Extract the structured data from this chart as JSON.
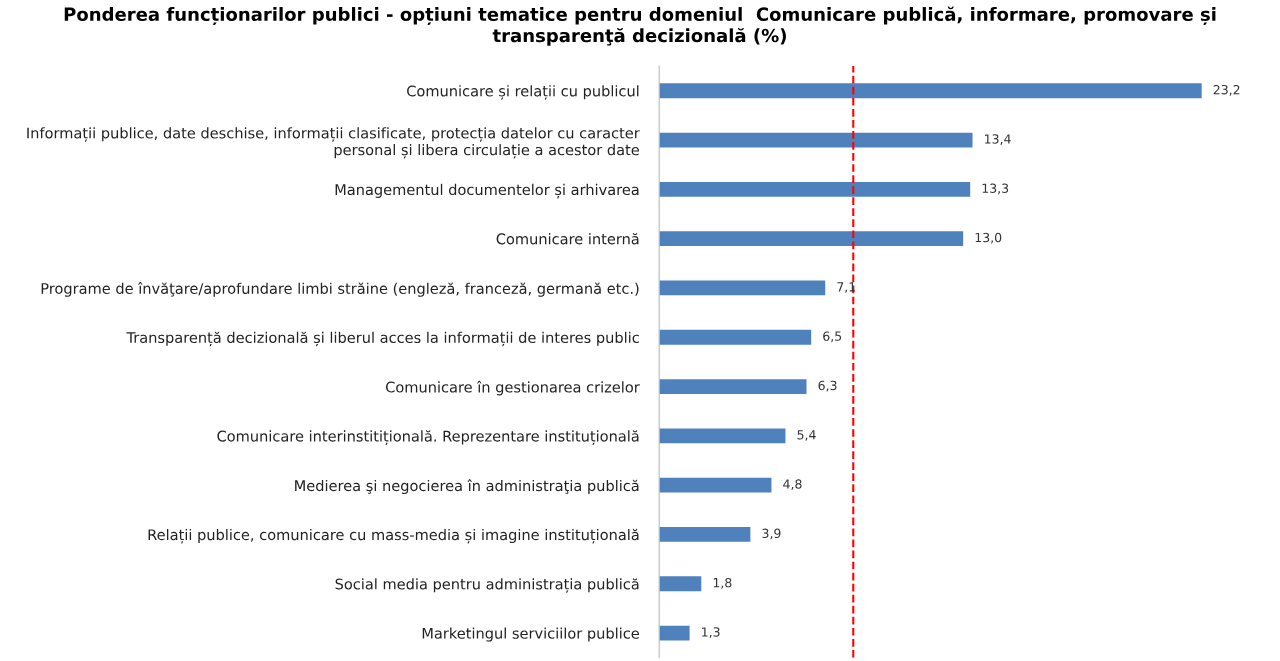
{
  "chart_data": {
    "type": "bar",
    "orientation": "horizontal",
    "title": "Ponderea funcționarilor publici - opțiuni tematice pentru domeniul  Comunicare publică, informare, promovare și transparenţă decizională (%)",
    "categories": [
      "Comunicare și relații cu publicul",
      "Informații publice, date deschise, informații clasificate, protecția datelor cu caracter personal și libera circulație a acestor date",
      "Managementul documentelor și arhivarea",
      "Comunicare internă",
      "Programe de învăţare/aprofundare limbi străine (engleză, franceză, germană etc.)",
      "Transparență decizională și liberul acces la informații de interes public",
      "Comunicare în gestionarea crizelor",
      "Comunicare interinstitițională. Reprezentare instituțională",
      "Medierea şi negocierea în administraţia publică",
      "Relații publice, comunicare cu mass-media și imagine instituțională",
      "Social media pentru administrația publică",
      "Marketingul serviciilor publice"
    ],
    "values": [
      23.2,
      13.4,
      13.3,
      13.0,
      7.1,
      6.5,
      6.3,
      5.4,
      4.8,
      3.9,
      1.8,
      1.3
    ],
    "value_labels": [
      "23,2",
      "13,4",
      "13,3",
      "13,0",
      "7,1",
      "6,5",
      "6,3",
      "5,4",
      "4,8",
      "3,9",
      "1,8",
      "1,3"
    ],
    "color": "#4f81bd",
    "ref_lines": [
      {
        "axis": "x",
        "value": 8.3,
        "color": "#ff0000",
        "line_style": "dashed"
      }
    ],
    "grid": false,
    "legend": false
  }
}
